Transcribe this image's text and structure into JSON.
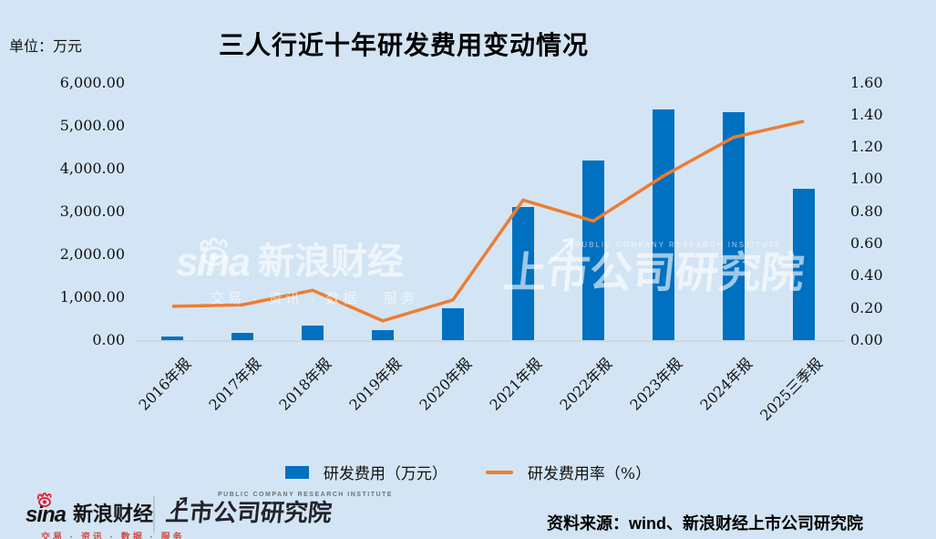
{
  "header": {
    "unit_label": "单位：万元"
  },
  "chart_data": {
    "type": "combo",
    "title": "三人行近十年研发费用变动情况",
    "unit": "万元",
    "categories": [
      "2016年报",
      "2017年报",
      "2018年报",
      "2019年报",
      "2020年报",
      "2021年报",
      "2022年报",
      "2023年报",
      "2024年报",
      "2025三季报"
    ],
    "series": [
      {
        "name": "研发费用（万元）",
        "type": "bar",
        "axis": "left",
        "color": "#0070c0",
        "values": [
          80,
          180,
          340,
          230,
          740,
          3110,
          4190,
          5380,
          5300,
          3520
        ]
      },
      {
        "name": "研发费用率（%）",
        "type": "line",
        "axis": "right",
        "color": "#ed7d31",
        "values": [
          0.21,
          0.22,
          0.31,
          0.12,
          0.25,
          0.87,
          0.74,
          1.02,
          1.26,
          1.36
        ]
      }
    ],
    "y_left": {
      "min": 0,
      "max": 6000,
      "ticks": [
        {
          "label": "6,000.00",
          "value": 6000
        },
        {
          "label": "5,000.00",
          "value": 5000
        },
        {
          "label": "4,000.00",
          "value": 4000
        },
        {
          "label": "3,000.00",
          "value": 3000
        },
        {
          "label": "2,000.00",
          "value": 2000
        },
        {
          "label": "1,000.00",
          "value": 1000
        },
        {
          "label": "0.00",
          "value": 0
        }
      ]
    },
    "y_right": {
      "min": 0,
      "max": 1.6,
      "ticks": [
        {
          "label": "1.60",
          "value": 1.6
        },
        {
          "label": "1.40",
          "value": 1.4
        },
        {
          "label": "1.20",
          "value": 1.2
        },
        {
          "label": "1.00",
          "value": 1.0
        },
        {
          "label": "0.80",
          "value": 0.8
        },
        {
          "label": "0.60",
          "value": 0.6
        },
        {
          "label": "0.40",
          "value": 0.4
        },
        {
          "label": "0.20",
          "value": 0.2
        },
        {
          "label": "0.00",
          "value": 0
        }
      ]
    },
    "grid": false,
    "legend_position": "bottom"
  },
  "watermark": {
    "sina": "sina",
    "brand": "新浪财经",
    "tagline": "交易 · 资讯 · 数据 · 服务",
    "institute_en": "PUBLIC COMPANY RESEARCH INSTITUTE",
    "institute": "上市公司研究院"
  },
  "footer": {
    "sina": "sina",
    "brand": "新浪财经",
    "tagline": "交易 · 资讯 · 数据 · 服务",
    "institute_en": "PUBLIC COMPANY RESEARCH INSTITUTE",
    "institute": "上市公司研究院",
    "source": "资料来源：wind、新浪财经上市公司研究院"
  },
  "colors": {
    "background": "#d3e5f4",
    "bar": "#0070c0",
    "line": "#ed7d31",
    "sina_red": "#e6162d",
    "tagline_red": "#d24a43",
    "institute_dark": "#22232b",
    "axis_line": "#ccd8e1"
  }
}
